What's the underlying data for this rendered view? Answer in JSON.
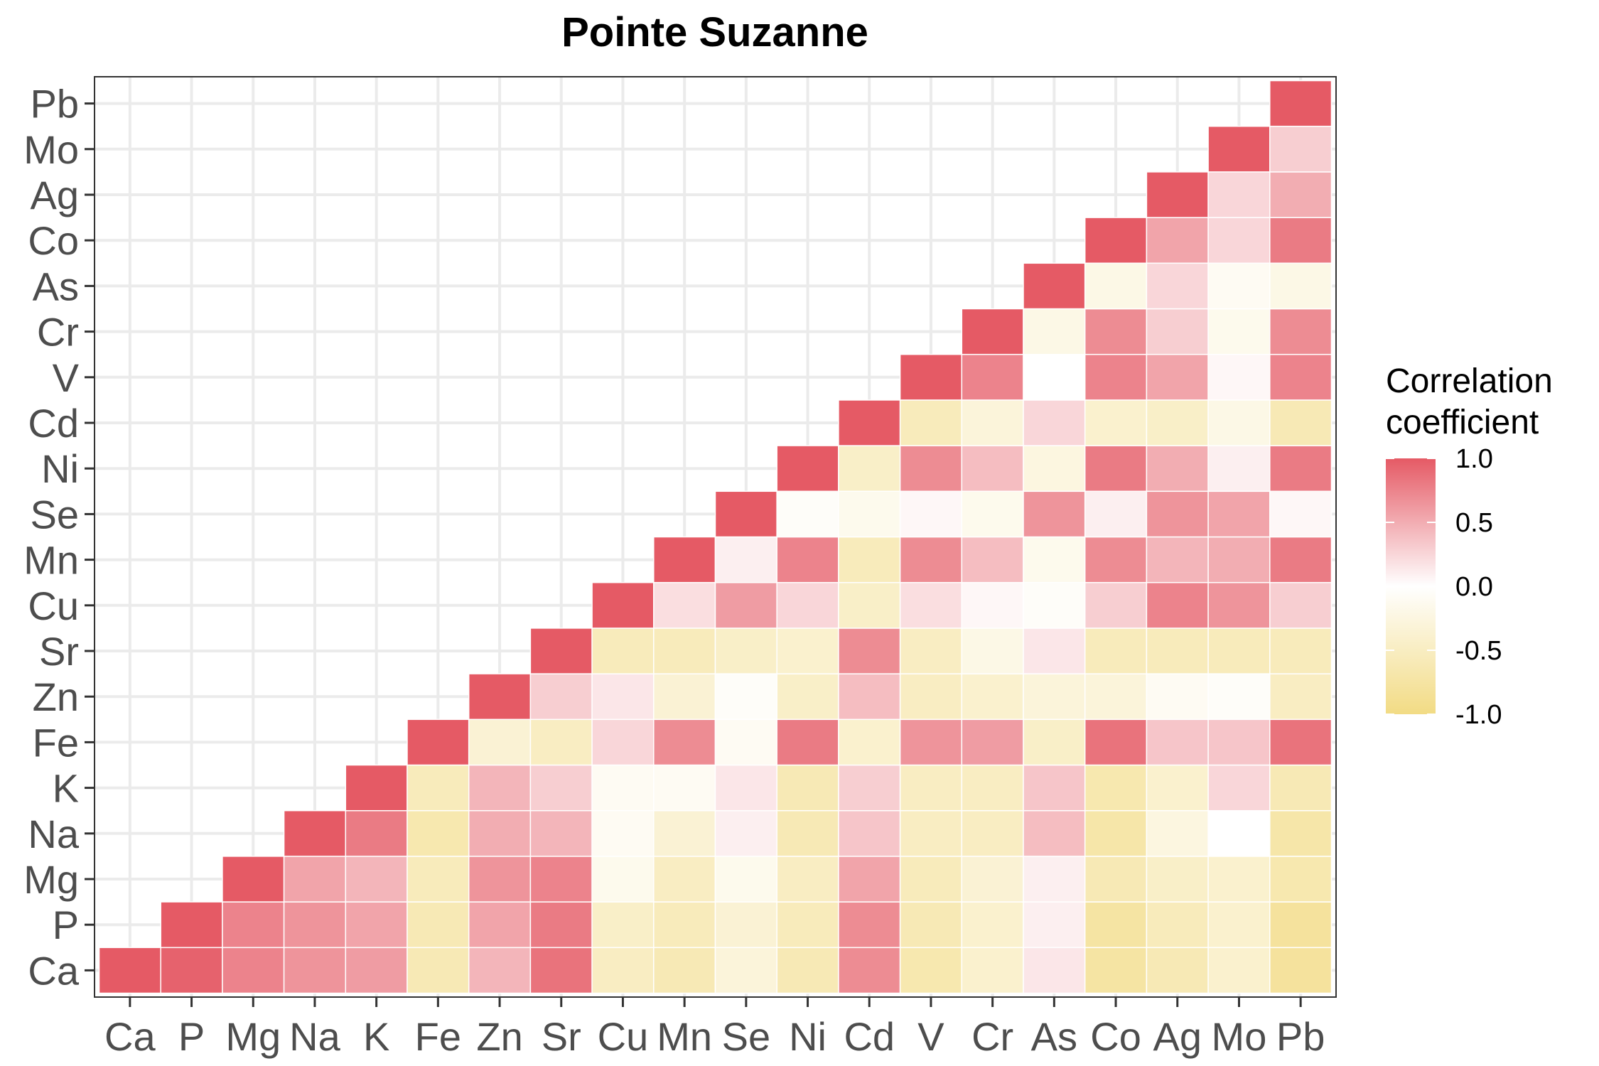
{
  "chart_data": {
    "type": "heatmap",
    "title": "Pointe Suzanne",
    "xlabel": "",
    "ylabel": "",
    "x_categories": [
      "Ca",
      "P",
      "Mg",
      "Na",
      "K",
      "Fe",
      "Zn",
      "Sr",
      "Cu",
      "Mn",
      "Se",
      "Ni",
      "Cd",
      "V",
      "Cr",
      "As",
      "Co",
      "Ag",
      "Mo",
      "Pb"
    ],
    "y_categories": [
      "Ca",
      "P",
      "Mg",
      "Na",
      "K",
      "Fe",
      "Zn",
      "Sr",
      "Cu",
      "Mn",
      "Se",
      "Ni",
      "Cd",
      "V",
      "Cr",
      "As",
      "Co",
      "Ag",
      "Mo",
      "Pb"
    ],
    "value_range": [
      -1,
      1
    ],
    "grid": true,
    "legend": {
      "title_lines": [
        "Correlation",
        "coefficient"
      ],
      "position": "right",
      "ticks": [
        1.0,
        0.5,
        0.0,
        -0.5,
        -1.0
      ],
      "tick_labels": [
        "1.0",
        "0.5",
        "0.0",
        "-0.5",
        "-1.0"
      ]
    },
    "colors": {
      "high": "#E55A65",
      "mid": "#FFFFFF",
      "low": "#F2DB84"
    },
    "triangle": "upper, column index >= row index",
    "rows": [
      {
        "row": "Ca",
        "values": [
          1.0,
          0.95,
          0.75,
          0.65,
          0.6,
          -0.6,
          0.45,
          0.85,
          -0.5,
          -0.6,
          -0.3,
          -0.6,
          0.7,
          -0.65,
          -0.4,
          0.15,
          -0.75,
          -0.6,
          -0.4,
          -0.8
        ]
      },
      {
        "row": "P",
        "values": [
          1.0,
          0.75,
          0.65,
          0.55,
          -0.6,
          0.55,
          0.8,
          -0.45,
          -0.55,
          -0.35,
          -0.55,
          0.7,
          -0.6,
          -0.4,
          0.1,
          -0.75,
          -0.55,
          -0.4,
          -0.8
        ]
      },
      {
        "row": "Mg",
        "values": [
          1.0,
          0.55,
          0.45,
          -0.55,
          0.65,
          0.75,
          -0.15,
          -0.5,
          -0.15,
          -0.5,
          0.55,
          -0.55,
          -0.35,
          0.1,
          -0.6,
          -0.45,
          -0.4,
          -0.65
        ]
      },
      {
        "row": "Na",
        "values": [
          1.0,
          0.8,
          -0.65,
          0.5,
          0.45,
          -0.1,
          -0.35,
          0.1,
          -0.6,
          0.35,
          -0.5,
          -0.5,
          0.4,
          -0.7,
          -0.25,
          0.0,
          -0.7
        ]
      },
      {
        "row": "K",
        "values": [
          1.0,
          -0.55,
          0.45,
          0.3,
          -0.1,
          -0.1,
          0.15,
          -0.6,
          0.3,
          -0.5,
          -0.5,
          0.35,
          -0.65,
          -0.4,
          0.25,
          -0.6
        ]
      },
      {
        "row": "Fe",
        "values": [
          1.0,
          -0.35,
          -0.5,
          0.25,
          0.7,
          -0.1,
          0.8,
          -0.4,
          0.65,
          0.6,
          -0.45,
          0.85,
          0.35,
          0.35,
          0.85
        ]
      },
      {
        "row": "Zn",
        "values": [
          1.0,
          0.3,
          0.15,
          -0.35,
          -0.05,
          -0.45,
          0.4,
          -0.5,
          -0.4,
          -0.3,
          -0.3,
          -0.1,
          -0.05,
          -0.5
        ]
      },
      {
        "row": "Sr",
        "values": [
          1.0,
          -0.55,
          -0.55,
          -0.45,
          -0.4,
          0.7,
          -0.5,
          -0.2,
          0.15,
          -0.55,
          -0.55,
          -0.55,
          -0.55
        ]
      },
      {
        "row": "Cu",
        "values": [
          1.0,
          0.2,
          0.6,
          0.25,
          -0.45,
          0.2,
          0.05,
          -0.05,
          0.3,
          0.75,
          0.65,
          0.3
        ]
      },
      {
        "row": "Mn",
        "values": [
          1.0,
          0.1,
          0.75,
          -0.55,
          0.7,
          0.4,
          -0.15,
          0.7,
          0.45,
          0.5,
          0.8
        ]
      },
      {
        "row": "Se",
        "values": [
          1.0,
          -0.05,
          -0.15,
          0.05,
          -0.15,
          0.65,
          0.1,
          0.65,
          0.55,
          0.05
        ]
      },
      {
        "row": "Ni",
        "values": [
          1.0,
          -0.45,
          0.7,
          0.4,
          -0.25,
          0.8,
          0.5,
          0.1,
          0.8
        ]
      },
      {
        "row": "Cd",
        "values": [
          1.0,
          -0.55,
          -0.3,
          0.25,
          -0.4,
          -0.45,
          -0.2,
          -0.6
        ]
      },
      {
        "row": "V",
        "values": [
          1.0,
          0.75,
          0.0,
          0.75,
          0.55,
          0.05,
          0.75
        ]
      },
      {
        "row": "Cr",
        "values": [
          1.0,
          -0.2,
          0.7,
          0.3,
          -0.15,
          0.7
        ]
      },
      {
        "row": "As",
        "values": [
          1.0,
          -0.2,
          0.25,
          -0.1,
          -0.2
        ]
      },
      {
        "row": "Co",
        "values": [
          1.0,
          0.55,
          0.25,
          0.8
        ]
      },
      {
        "row": "Ag",
        "values": [
          1.0,
          0.25,
          0.5
        ]
      },
      {
        "row": "Mo",
        "values": [
          1.0,
          0.3
        ]
      },
      {
        "row": "Pb",
        "values": [
          1.0
        ]
      }
    ]
  }
}
